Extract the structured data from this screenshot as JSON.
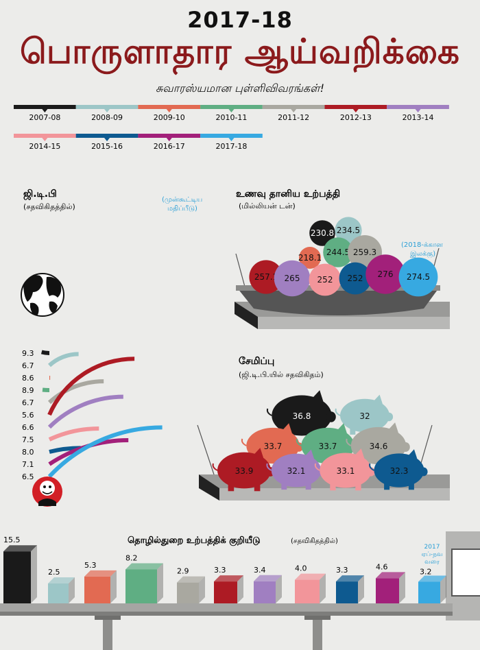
{
  "header": {
    "year_title": "2017-18",
    "main_title": "பொருளாதார ஆய்வறிக்கை",
    "subtitle": "சுவாரஸ்யமான புள்ளிவிவரங்கள்!"
  },
  "timeline": {
    "years": [
      "2007-08",
      "2008-09",
      "2009-10",
      "2010-11",
      "2011-12",
      "2012-13",
      "2013-14",
      "2014-15",
      "2015-16",
      "2016-17",
      "2017-18"
    ],
    "colors": [
      "#1a1a1a",
      "#9cc6c7",
      "#e26a52",
      "#5fae83",
      "#a9a8a0",
      "#ad1b24",
      "#a07fc1",
      "#f2959a",
      "#0e5a90",
      "#a2207a",
      "#37a9e1"
    ]
  },
  "chart_data": [
    {
      "type": "arc",
      "title": "ஜி.டி.பி",
      "subtitle": "(சதவிகிதத்தில்)",
      "note": "(முன்கூட்டிய மதிப்பீடு)",
      "categories": [
        "2007-08",
        "2008-09",
        "2009-10",
        "2010-11",
        "2011-12",
        "2012-13",
        "2013-14",
        "2014-15",
        "2015-16",
        "2016-17",
        "2017-18"
      ],
      "values": [
        9.3,
        6.7,
        8.6,
        8.9,
        6.7,
        5.6,
        6.6,
        7.5,
        8.0,
        7.1,
        6.5
      ],
      "value_labels": [
        "9.3",
        "6.7",
        "8.6",
        "8.9",
        "6.7",
        "5.6",
        "6.6",
        "7.5",
        "8.0",
        "7.1",
        "6.5"
      ]
    },
    {
      "type": "bubble",
      "title": "உணவு தானிய உற்பத்தி",
      "subtitle": "(மில்லியன் டன்)",
      "note": "(2018-க்கான இலக்கு)",
      "categories": [
        "2007-08",
        "2008-09",
        "2009-10",
        "2010-11",
        "2011-12",
        "2012-13",
        "2013-14",
        "2014-15",
        "2015-16",
        "2016-17",
        "2017-18"
      ],
      "values": [
        230.8,
        234.5,
        218.1,
        244.5,
        259.3,
        257.1,
        265,
        252,
        252,
        276,
        274.5
      ],
      "value_labels": [
        "230.8",
        "234.5",
        "218.1",
        "244.5",
        "259.3",
        "257.1",
        "265",
        "252",
        "252",
        "276",
        "274.5"
      ]
    },
    {
      "type": "bubble",
      "title": "சேமிப்பு",
      "subtitle": "(ஜி.டி.பி.யில் சதவிகிதம்)",
      "categories": [
        "2007-08",
        "2008-09",
        "2009-10",
        "2010-11",
        "2011-12",
        "2012-13",
        "2013-14",
        "2014-15",
        "2015-16"
      ],
      "values": [
        36.8,
        32,
        33.7,
        33.7,
        34.6,
        33.9,
        32.1,
        33.1,
        32.3
      ],
      "value_labels": [
        "36.8",
        "32",
        "33.7",
        "33.7",
        "34.6",
        "33.9",
        "32.1",
        "33.1",
        "32.3"
      ]
    },
    {
      "type": "bar",
      "title": "தொழில்துறை உற்பத்திக் குறியீடு",
      "subtitle": "(சதவிகிதத்தில்)",
      "note": "2017 ஏப்-நவ வரை",
      "categories": [
        "2007-08",
        "2008-09",
        "2009-10",
        "2010-11",
        "2011-12",
        "2012-13",
        "2013-14",
        "2014-15",
        "2015-16",
        "2016-17",
        "2017-18"
      ],
      "values": [
        15.5,
        2.5,
        5.3,
        8.2,
        2.9,
        3.3,
        3.4,
        4.0,
        3.3,
        4.6,
        3.2
      ],
      "value_labels": [
        "15.5",
        "2.5",
        "5.3",
        "8.2",
        "2.9",
        "3.3",
        "3.4",
        "4.0",
        "3.3",
        "4.6",
        "3.2"
      ]
    }
  ]
}
